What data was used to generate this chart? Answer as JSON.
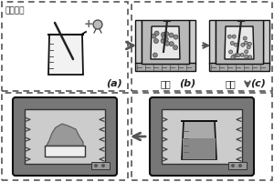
{
  "bg": "#ffffff",
  "dash": "#555555",
  "black": "#111111",
  "gray1": "#bbbbbb",
  "gray2": "#888888",
  "gray3": "#555555",
  "gray4": "#dddddd",
  "gray5": "#aaaaaa",
  "text_water": "去离子水",
  "text_sol": "溶胶",
  "text_gel": "凝胶",
  "label_a": "(a)",
  "label_b": "(b)",
  "label_c": "(c)"
}
